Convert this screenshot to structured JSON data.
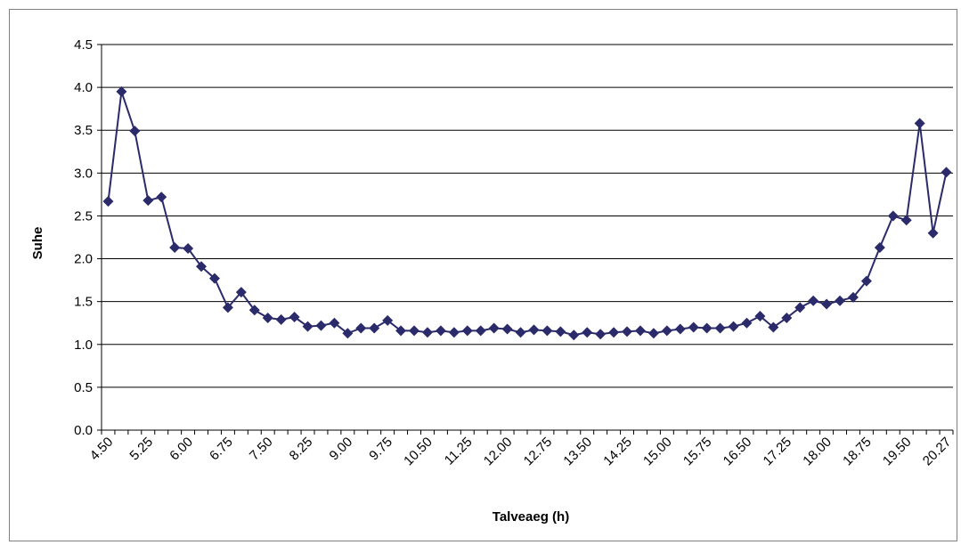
{
  "chart_data": {
    "type": "line",
    "title": "",
    "xlabel": "Talveaeg (h)",
    "ylabel": "Suhe",
    "ylim": [
      0,
      4.5
    ],
    "yticks": [
      "0.0",
      "0.5",
      "1.0",
      "1.5",
      "2.0",
      "2.5",
      "3.0",
      "3.5",
      "4.0",
      "4.5"
    ],
    "xtick_labels": [
      "4.50",
      "5.25",
      "6.00",
      "6.75",
      "7.50",
      "8.25",
      "9.00",
      "9.75",
      "10.50",
      "11.25",
      "12.00",
      "12.75",
      "13.50",
      "14.25",
      "15.00",
      "15.75",
      "16.50",
      "17.25",
      "18.00",
      "18.75",
      "19.50",
      "20.27"
    ],
    "grid": "horizontal",
    "legend": "none",
    "line_color": "#2b2b6b",
    "marker": "diamond",
    "series": [
      {
        "values": [
          2.67,
          3.95,
          3.49,
          2.68,
          2.72,
          2.13,
          2.12,
          1.91,
          1.77,
          1.43,
          1.61,
          1.4,
          1.31,
          1.29,
          1.32,
          1.21,
          1.22,
          1.25,
          1.13,
          1.19,
          1.19,
          1.28,
          1.16,
          1.16,
          1.14,
          1.16,
          1.14,
          1.16,
          1.16,
          1.19,
          1.18,
          1.14,
          1.17,
          1.16,
          1.15,
          1.11,
          1.14,
          1.12,
          1.14,
          1.15,
          1.16,
          1.13,
          1.16,
          1.18,
          1.2,
          1.19,
          1.19,
          1.21,
          1.25,
          1.33,
          1.2,
          1.31,
          1.43,
          1.51,
          1.47,
          1.51,
          1.55,
          1.74,
          2.13,
          2.5,
          2.45,
          3.58,
          2.3,
          3.01
        ]
      }
    ]
  }
}
